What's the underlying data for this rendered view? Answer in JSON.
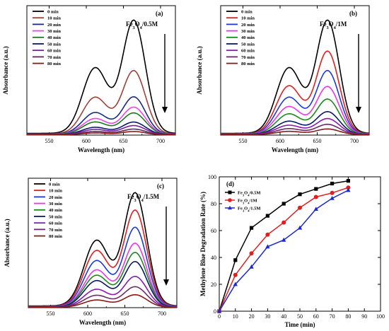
{
  "chart_data": [
    {
      "id": "a",
      "type": "line",
      "panel_label": "(a)",
      "annotation": {
        "main": "Fe",
        "sub1": "3",
        "mid": "O",
        "sub2": "4",
        "tail": "/0.5M"
      },
      "xlabel": "Wavelength (nm)",
      "ylabel": "Absorbance (a.u.)",
      "xlim": [
        520,
        720
      ],
      "xticks": [
        550,
        600,
        650,
        700
      ],
      "legend_position": "top-left",
      "arrow": "downward",
      "series": [
        {
          "name": "0 min",
          "color": "#000000",
          "base": 0.015,
          "peak": 1.0
        },
        {
          "name": "10 min",
          "color": "#a0403a",
          "base": 0.01,
          "peak": 0.56
        },
        {
          "name": "20 min",
          "color": "#1a2a8a",
          "base": 0.008,
          "peak": 0.33
        },
        {
          "name": "30 min",
          "color": "#ee44ee",
          "base": 0.007,
          "peak": 0.24
        },
        {
          "name": "40 min",
          "color": "#1a7a1a",
          "base": 0.006,
          "peak": 0.19
        },
        {
          "name": "50 min",
          "color": "#0a1a6a",
          "base": 0.005,
          "peak": 0.11
        },
        {
          "name": "60 min",
          "color": "#7a1aa0",
          "base": 0.004,
          "peak": 0.08
        },
        {
          "name": "70 min",
          "color": "#5a2a5a",
          "base": 0.003,
          "peak": 0.05
        },
        {
          "name": "80 min",
          "color": "#8a1a1a",
          "base": 0.002,
          "peak": 0.03
        }
      ]
    },
    {
      "id": "b",
      "type": "line",
      "panel_label": "(b)",
      "annotation": {
        "main": "Fe",
        "sub1": "3",
        "mid": "O",
        "sub2": "4",
        "tail": "/1M"
      },
      "xlabel": "Wavelength (nm)",
      "ylabel": "Absorbance (a.u.)",
      "xlim": [
        520,
        720
      ],
      "xticks": [
        550,
        600,
        650,
        700
      ],
      "legend_position": "top-left",
      "arrow": "downward",
      "series": [
        {
          "name": "0 min",
          "color": "#000000",
          "base": 0.015,
          "peak": 1.0
        },
        {
          "name": "10 min",
          "color": "#e01e1e",
          "base": 0.012,
          "peak": 0.73
        },
        {
          "name": "20 min",
          "color": "#1a3ae0",
          "base": 0.01,
          "peak": 0.56
        },
        {
          "name": "30 min",
          "color": "#ee33ee",
          "base": 0.009,
          "peak": 0.42
        },
        {
          "name": "40 min",
          "color": "#1a8a1a",
          "base": 0.008,
          "peak": 0.31
        },
        {
          "name": "50 min",
          "color": "#0a1a6a",
          "base": 0.007,
          "peak": 0.2
        },
        {
          "name": "60 min",
          "color": "#8a1ab0",
          "base": 0.006,
          "peak": 0.14
        },
        {
          "name": "70 min",
          "color": "#6a2a6a",
          "base": 0.005,
          "peak": 0.09
        },
        {
          "name": "80 min",
          "color": "#8a1a1a",
          "base": 0.004,
          "peak": 0.05
        }
      ]
    },
    {
      "id": "c",
      "type": "line",
      "panel_label": "(c)",
      "annotation": {
        "main": "Fe",
        "sub1": "3",
        "mid": "O",
        "sub2": "4",
        "tail": "/1.5M"
      },
      "xlabel": "Wavelength (nm)",
      "ylabel": "Absorbance (a.u.)",
      "xlim": [
        520,
        720
      ],
      "xticks": [
        550,
        600,
        650,
        700
      ],
      "legend_position": "top-left",
      "arrow": "downward",
      "series": [
        {
          "name": "0 min",
          "color": "#000000",
          "base": 0.015,
          "peak": 1.0
        },
        {
          "name": "10 min",
          "color": "#e01e1e",
          "base": 0.012,
          "peak": 0.85
        },
        {
          "name": "20 min",
          "color": "#1a3ae0",
          "base": 0.01,
          "peak": 0.7
        },
        {
          "name": "30 min",
          "color": "#ee33ee",
          "base": 0.009,
          "peak": 0.56
        },
        {
          "name": "40 min",
          "color": "#1a8a1a",
          "base": 0.008,
          "peak": 0.48
        },
        {
          "name": "50 min",
          "color": "#0a1a6a",
          "base": 0.007,
          "peak": 0.4
        },
        {
          "name": "60 min",
          "color": "#8a1ab0",
          "base": 0.006,
          "peak": 0.27
        },
        {
          "name": "70 min",
          "color": "#6a2a6a",
          "base": 0.005,
          "peak": 0.18
        },
        {
          "name": "80 min",
          "color": "#8a1a1a",
          "base": 0.004,
          "peak": 0.11
        }
      ]
    },
    {
      "id": "d",
      "type": "line",
      "panel_label": "(d)",
      "xlabel": "Time (min)",
      "ylabel": "Methylene Blue Degradation Rate (%)",
      "xlim": [
        0,
        100
      ],
      "ylim": [
        0,
        100
      ],
      "xticks": [
        0,
        10,
        20,
        30,
        40,
        50,
        60,
        70,
        80,
        90,
        100
      ],
      "yticks": [
        0,
        20,
        40,
        60,
        80,
        100
      ],
      "legend_position": "top-left",
      "x": [
        0,
        10,
        20,
        30,
        40,
        50,
        60,
        70,
        80
      ],
      "series": [
        {
          "label": {
            "main": "Fe",
            "sub1": "3",
            "mid": "O",
            "sub2": "4",
            "tail": "/0.5M"
          },
          "color": "#000000",
          "marker": "square",
          "values": [
            0,
            38,
            62,
            71,
            80,
            87,
            91,
            95,
            97
          ]
        },
        {
          "label": {
            "main": "Fe",
            "sub1": "3",
            "mid": "O",
            "sub2": "4",
            "tail": "/1M"
          },
          "color": "#e01e1e",
          "marker": "circle",
          "values": [
            0,
            27,
            43,
            57,
            66,
            77,
            85,
            88,
            92
          ]
        },
        {
          "label": {
            "main": "Fe",
            "sub1": "3",
            "mid": "O",
            "sub2": "4",
            "tail": "/1.5M"
          },
          "color": "#1a2ad0",
          "marker": "triangle",
          "values": [
            0,
            20,
            33,
            48,
            53,
            62,
            76,
            84,
            90
          ]
        }
      ]
    }
  ]
}
